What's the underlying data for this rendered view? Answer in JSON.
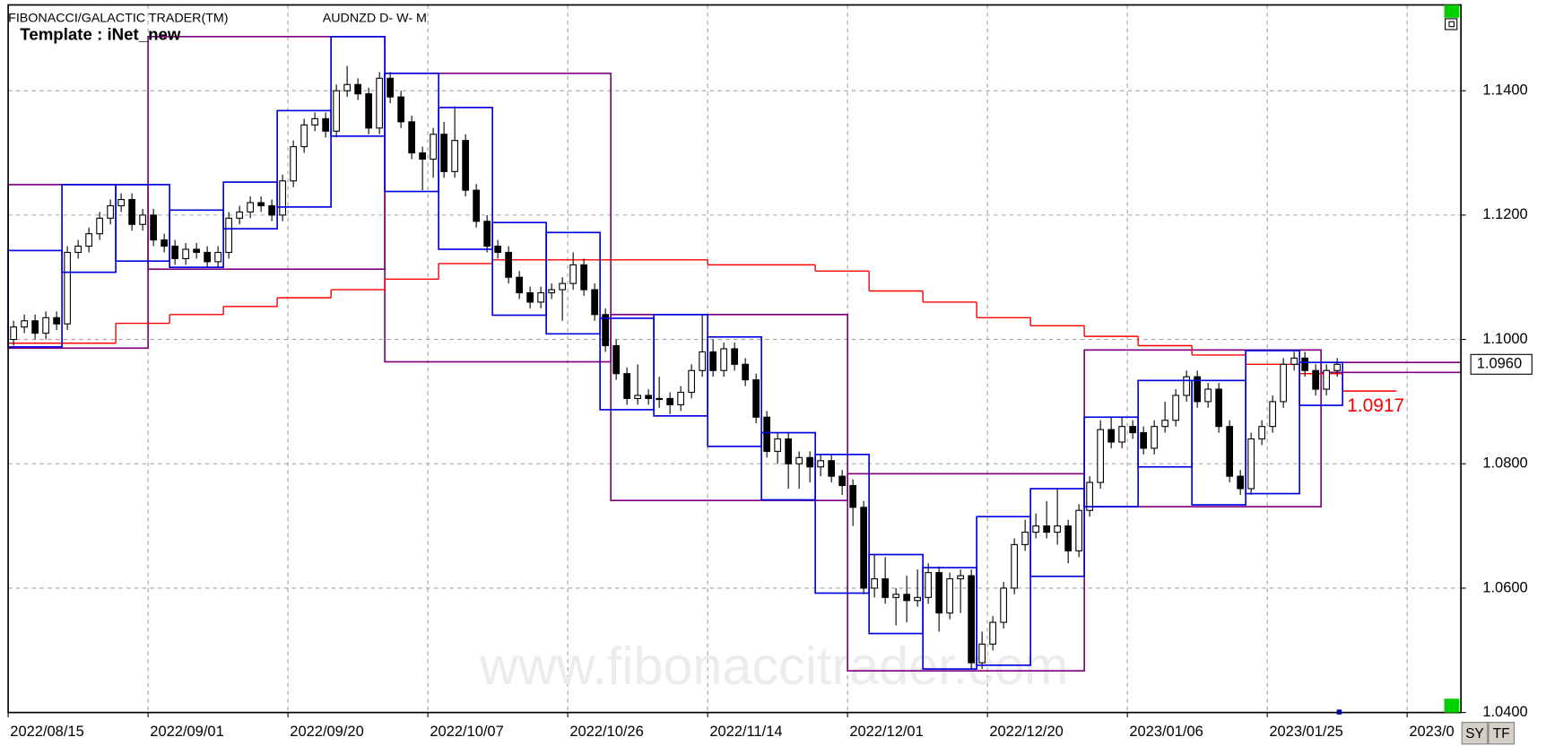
{
  "header": {
    "app": "FIBONACCI/GALACTIC TRADER(TM)",
    "symbol": "AUDNZD D- W- M",
    "template": "Template : iNet_new",
    "watermark": "www.fibonaccitrader.com",
    "buttons": [
      "SY",
      "TF"
    ]
  },
  "chart_data": {
    "type": "candlestick",
    "xlim": [
      0,
      135
    ],
    "ylim": [
      1.04,
      1.1538
    ],
    "xticks": [
      {
        "value": 0,
        "label": "2022/08/15"
      },
      {
        "value": 13,
        "label": "2022/09/01"
      },
      {
        "value": 26,
        "label": "2022/09/20"
      },
      {
        "value": 39,
        "label": "2022/10/07"
      },
      {
        "value": 52,
        "label": "2022/10/26"
      },
      {
        "value": 65,
        "label": "2022/11/14"
      },
      {
        "value": 78,
        "label": "2022/12/01"
      },
      {
        "value": 91,
        "label": "2022/12/20"
      },
      {
        "value": 104,
        "label": "2023/01/06"
      },
      {
        "value": 117,
        "label": "2023/01/25"
      },
      {
        "value": 130,
        "label": "2023/0"
      }
    ],
    "yticks": [
      {
        "value": 1.04,
        "label": "1.0400"
      },
      {
        "value": 1.06,
        "label": "1.0600"
      },
      {
        "value": 1.08,
        "label": "1.0800"
      },
      {
        "value": 1.1,
        "label": "1.1000"
      },
      {
        "value": 1.12,
        "label": "1.1200"
      },
      {
        "value": 1.14,
        "label": "1.1400"
      }
    ],
    "grid": true,
    "open": [
      1.1,
      1.102,
      1.103,
      1.101,
      1.1035,
      1.1025,
      1.114,
      1.115,
      1.117,
      1.1195,
      1.1215,
      1.1225,
      1.1185,
      1.12,
      1.116,
      1.115,
      1.113,
      1.1145,
      1.114,
      1.1125,
      1.114,
      1.1195,
      1.1205,
      1.122,
      1.1215,
      1.12,
      1.1255,
      1.131,
      1.1345,
      1.1355,
      1.1335,
      1.14,
      1.141,
      1.1395,
      1.134,
      1.142,
      1.139,
      1.135,
      1.13,
      1.129,
      1.133,
      1.127,
      1.132,
      1.124,
      1.119,
      1.115,
      1.114,
      1.11,
      1.1075,
      1.106,
      1.1075,
      1.108,
      1.109,
      1.112,
      1.108,
      1.104,
      1.099,
      1.0945,
      1.0905,
      1.091,
      1.0905,
      1.0905,
      1.0895,
      1.0915,
      1.095,
      1.098,
      1.095,
      1.0985,
      1.096,
      1.0935,
      1.0875,
      1.082,
      1.084,
      1.08,
      1.081,
      1.0795,
      1.0805,
      1.078,
      1.0765,
      1.073,
      1.06,
      1.0615,
      1.0585,
      1.059,
      1.058,
      1.0585,
      1.0625,
      1.056,
      1.0615,
      1.062,
      1.048,
      1.051,
      1.0545,
      1.06,
      1.067,
      1.069,
      1.07,
      1.069,
      1.07,
      1.066,
      1.0725,
      1.077,
      1.0855,
      1.0835,
      1.086,
      1.085,
      1.0825,
      1.086,
      1.087,
      1.091,
      1.094,
      1.09,
      1.092,
      1.086,
      1.078,
      1.076,
      1.084,
      1.086,
      1.09,
      1.096,
      1.097,
      1.095,
      1.092,
      1.095
    ],
    "high": [
      1.103,
      1.104,
      1.104,
      1.1045,
      1.1045,
      1.115,
      1.116,
      1.118,
      1.1205,
      1.1225,
      1.1235,
      1.1235,
      1.121,
      1.121,
      1.117,
      1.116,
      1.1155,
      1.1155,
      1.115,
      1.115,
      1.1205,
      1.1215,
      1.123,
      1.123,
      1.1225,
      1.1265,
      1.132,
      1.1355,
      1.1365,
      1.1365,
      1.141,
      1.144,
      1.142,
      1.1405,
      1.143,
      1.143,
      1.14,
      1.136,
      1.131,
      1.134,
      1.135,
      1.1375,
      1.133,
      1.125,
      1.12,
      1.116,
      1.115,
      1.111,
      1.1085,
      1.1085,
      1.109,
      1.11,
      1.114,
      1.113,
      1.109,
      1.105,
      1.1,
      1.0955,
      1.096,
      1.092,
      1.094,
      1.0915,
      1.0925,
      1.096,
      1.104,
      1.1,
      1.0995,
      1.0995,
      1.097,
      1.0945,
      1.0885,
      1.085,
      1.085,
      1.082,
      1.082,
      1.0815,
      1.0815,
      1.079,
      1.0775,
      1.074,
      1.0655,
      1.065,
      1.06,
      1.062,
      1.063,
      1.064,
      1.0635,
      1.0625,
      1.063,
      1.063,
      1.053,
      1.0555,
      1.061,
      1.068,
      1.071,
      1.072,
      1.074,
      1.076,
      1.071,
      1.0735,
      1.078,
      1.087,
      1.0875,
      1.0875,
      1.087,
      1.086,
      1.087,
      1.09,
      1.092,
      1.095,
      1.095,
      1.093,
      1.093,
      1.087,
      1.079,
      1.085,
      1.087,
      1.091,
      1.097,
      1.098,
      1.098,
      1.096,
      1.096,
      1.097
    ],
    "low": [
      1.099,
      1.101,
      1.1,
      1.1,
      1.1015,
      1.1015,
      1.113,
      1.114,
      1.116,
      1.1185,
      1.1205,
      1.1175,
      1.1175,
      1.115,
      1.114,
      1.112,
      1.112,
      1.113,
      1.1115,
      1.1115,
      1.113,
      1.1185,
      1.1195,
      1.1205,
      1.119,
      1.119,
      1.1245,
      1.13,
      1.1335,
      1.1325,
      1.1325,
      1.139,
      1.1385,
      1.133,
      1.133,
      1.138,
      1.134,
      1.129,
      1.124,
      1.126,
      1.126,
      1.126,
      1.123,
      1.118,
      1.114,
      1.113,
      1.109,
      1.1065,
      1.105,
      1.105,
      1.1065,
      1.103,
      1.108,
      1.107,
      1.103,
      1.098,
      1.0935,
      1.0895,
      1.0895,
      1.0895,
      1.089,
      1.088,
      1.0885,
      1.0905,
      1.094,
      1.094,
      1.094,
      1.095,
      1.0925,
      1.0865,
      1.081,
      1.08,
      1.076,
      1.076,
      1.077,
      1.078,
      1.077,
      1.075,
      1.07,
      1.059,
      1.0585,
      1.0575,
      1.054,
      1.0545,
      1.057,
      1.0575,
      1.053,
      1.055,
      1.056,
      1.047,
      1.047,
      1.05,
      1.0535,
      1.059,
      1.066,
      1.068,
      1.068,
      1.067,
      1.064,
      1.065,
      1.0715,
      1.076,
      1.0825,
      1.0825,
      1.084,
      1.0815,
      1.0815,
      1.085,
      1.086,
      1.09,
      1.089,
      1.089,
      1.085,
      1.077,
      1.075,
      1.075,
      1.083,
      1.085,
      1.089,
      1.095,
      1.094,
      1.091,
      1.091,
      1.094
    ],
    "close": [
      1.102,
      1.103,
      1.101,
      1.1035,
      1.1025,
      1.114,
      1.115,
      1.117,
      1.1195,
      1.1215,
      1.1225,
      1.1185,
      1.12,
      1.116,
      1.115,
      1.113,
      1.1145,
      1.114,
      1.1125,
      1.114,
      1.1195,
      1.1205,
      1.122,
      1.1215,
      1.12,
      1.1255,
      1.131,
      1.1345,
      1.1355,
      1.1335,
      1.14,
      1.141,
      1.1395,
      1.134,
      1.142,
      1.139,
      1.135,
      1.13,
      1.129,
      1.133,
      1.127,
      1.132,
      1.124,
      1.119,
      1.115,
      1.114,
      1.11,
      1.1075,
      1.106,
      1.1075,
      1.108,
      1.109,
      1.112,
      1.108,
      1.104,
      1.099,
      1.0945,
      1.0905,
      1.091,
      1.0905,
      1.0905,
      1.0895,
      1.0915,
      1.095,
      1.098,
      1.095,
      1.0985,
      1.096,
      1.0935,
      1.0875,
      1.082,
      1.084,
      1.08,
      1.081,
      1.0795,
      1.0805,
      1.078,
      1.0765,
      1.073,
      1.06,
      1.0615,
      1.0585,
      1.059,
      1.058,
      1.0585,
      1.0625,
      1.056,
      1.0615,
      1.062,
      1.048,
      1.051,
      1.0545,
      1.06,
      1.067,
      1.069,
      1.07,
      1.069,
      1.07,
      1.066,
      1.0725,
      1.077,
      1.0855,
      1.0835,
      1.086,
      1.085,
      1.0825,
      1.086,
      1.087,
      1.091,
      1.094,
      1.09,
      1.092,
      1.086,
      1.078,
      1.076,
      1.084,
      1.086,
      1.09,
      1.096,
      1.097,
      1.095,
      1.092,
      1.095,
      1.096
    ],
    "monthly_boxes": {
      "color": "#800080",
      "boxes": [
        {
          "start": 0,
          "end": 13,
          "high": 1.1249,
          "low": 1.0986
        },
        {
          "start": 13,
          "end": 35,
          "high": 1.1487,
          "low": 1.1113
        },
        {
          "start": 35,
          "end": 56,
          "high": 1.1428,
          "low": 1.0964
        },
        {
          "start": 56,
          "end": 78,
          "high": 1.104,
          "low": 1.0741
        },
        {
          "start": 78,
          "end": 100,
          "high": 1.0784,
          "low": 1.0467
        },
        {
          "start": 100,
          "end": 122,
          "high": 1.0983,
          "low": 1.0731
        },
        {
          "start": 122,
          "end": 135,
          "high": 1.0963,
          "low": 1.0947
        }
      ]
    },
    "weekly_boxes": {
      "color": "#0000e0",
      "boxes": [
        {
          "start": 0,
          "end": 5,
          "high": 1.1143,
          "low": 1.0988
        },
        {
          "start": 5,
          "end": 10,
          "high": 1.1249,
          "low": 1.1108
        },
        {
          "start": 10,
          "end": 15,
          "high": 1.1249,
          "low": 1.1126
        },
        {
          "start": 15,
          "end": 20,
          "high": 1.1208,
          "low": 1.1116
        },
        {
          "start": 20,
          "end": 25,
          "high": 1.1253,
          "low": 1.1178
        },
        {
          "start": 25,
          "end": 30,
          "high": 1.1368,
          "low": 1.1213
        },
        {
          "start": 30,
          "end": 35,
          "high": 1.1487,
          "low": 1.1327
        },
        {
          "start": 35,
          "end": 40,
          "high": 1.1428,
          "low": 1.1238
        },
        {
          "start": 40,
          "end": 45,
          "high": 1.1373,
          "low": 1.1145
        },
        {
          "start": 45,
          "end": 50,
          "high": 1.1188,
          "low": 1.1039
        },
        {
          "start": 50,
          "end": 55,
          "high": 1.1172,
          "low": 1.1009
        },
        {
          "start": 55,
          "end": 60,
          "high": 1.1034,
          "low": 1.0887
        },
        {
          "start": 60,
          "end": 65,
          "high": 1.104,
          "low": 1.0877
        },
        {
          "start": 65,
          "end": 70,
          "high": 1.1004,
          "low": 1.0828
        },
        {
          "start": 70,
          "end": 75,
          "high": 1.085,
          "low": 1.0742
        },
        {
          "start": 75,
          "end": 80,
          "high": 1.0815,
          "low": 1.0592
        },
        {
          "start": 80,
          "end": 85,
          "high": 1.0654,
          "low": 1.0527
        },
        {
          "start": 85,
          "end": 90,
          "high": 1.0633,
          "low": 1.047
        },
        {
          "start": 90,
          "end": 95,
          "high": 1.0715,
          "low": 1.0476
        },
        {
          "start": 95,
          "end": 100,
          "high": 1.076,
          "low": 1.0619
        },
        {
          "start": 100,
          "end": 105,
          "high": 1.0875,
          "low": 1.0731
        },
        {
          "start": 105,
          "end": 110,
          "high": 1.0934,
          "low": 1.0795
        },
        {
          "start": 110,
          "end": 115,
          "high": 1.0934,
          "low": 1.0734
        },
        {
          "start": 115,
          "end": 120,
          "high": 1.0982,
          "low": 1.0752
        },
        {
          "start": 120,
          "end": 124,
          "high": 1.0963,
          "low": 1.0894
        }
      ]
    },
    "red_line": {
      "color": "#ff0000",
      "edges": [
        0,
        10,
        15,
        20,
        25,
        30,
        35,
        40,
        45,
        65,
        75,
        80,
        85,
        90,
        95,
        100,
        105,
        110,
        115,
        120,
        124,
        129
      ],
      "values": [
        1.0994,
        1.1026,
        1.104,
        1.1053,
        1.1067,
        1.108,
        1.1097,
        1.1122,
        1.1128,
        1.112,
        1.111,
        1.1078,
        1.106,
        1.1035,
        1.1022,
        1.1005,
        1.099,
        1.0975,
        1.096,
        1.0945,
        1.0917
      ],
      "label": {
        "value": 1.0917,
        "label": "1.0917"
      }
    },
    "last_price": {
      "value": 1.096,
      "label": "1.0960"
    }
  }
}
